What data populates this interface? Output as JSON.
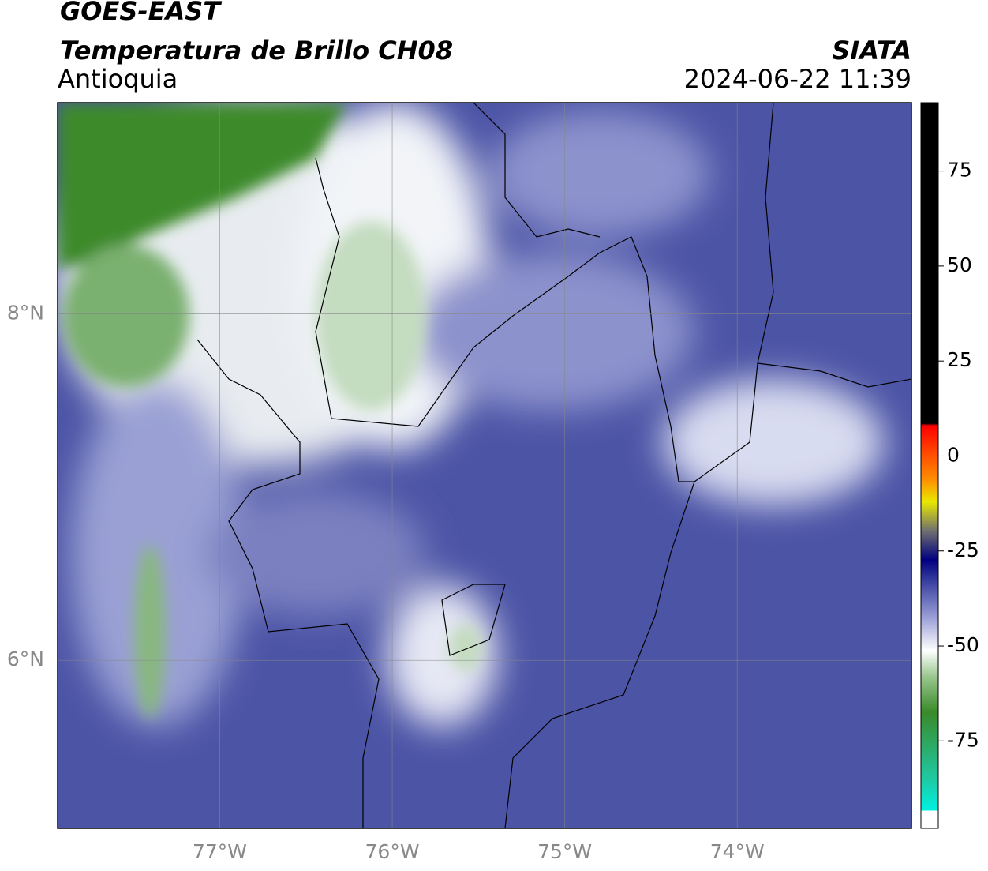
{
  "title": "GOES-EAST",
  "subtitle": "Temperatura de Brillo CH08",
  "region": "Antioquia",
  "source": "SIATA",
  "datetime": "2024-06-22 11:39",
  "map": {
    "xlim": [
      -77.94,
      -72.99
    ],
    "ylim": [
      5.03,
      9.22
    ],
    "xticks": [
      {
        "value": -77,
        "label": "77°W"
      },
      {
        "value": -76,
        "label": "76°W"
      },
      {
        "value": -75,
        "label": "75°W"
      },
      {
        "value": -74,
        "label": "74°W"
      }
    ],
    "yticks": [
      {
        "value": 8,
        "label": "8°N"
      },
      {
        "value": 6,
        "label": "6°N"
      }
    ],
    "grid": true
  },
  "colorbar": {
    "lim": [
      -98,
      93
    ],
    "ticks": [
      75,
      50,
      25,
      0,
      -25,
      -50,
      -75
    ]
  }
}
